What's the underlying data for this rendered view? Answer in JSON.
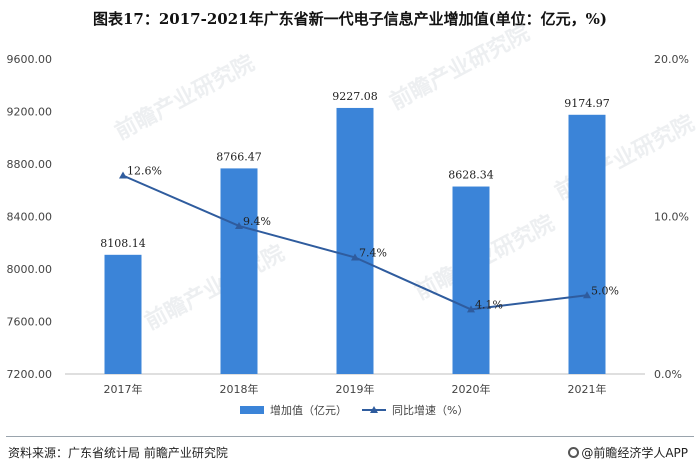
{
  "title": "图表17：2017-2021年广东省新一代电子信息产业增加值(单位：亿元，%)",
  "footer": {
    "source": "资料来源：广东省统计局 前瞻产业研究院",
    "brand": "@前瞻经济学人APP"
  },
  "watermark": "前瞻产业研究院",
  "colors": {
    "bar": "#3b84d8",
    "line": "#2f5c9e",
    "axis": "#bfbfbf"
  },
  "chart_data": {
    "type": "bar",
    "categories": [
      "2017年",
      "2018年",
      "2019年",
      "2020年",
      "2021年"
    ],
    "series": [
      {
        "name": "增加值（亿元）",
        "type": "bar",
        "axis": "left",
        "values": [
          8108.14,
          8766.47,
          9227.08,
          8628.34,
          9174.97
        ],
        "labels": [
          "8108.14",
          "8766.47",
          "9227.08",
          "8628.34",
          "9174.97"
        ]
      },
      {
        "name": "同比增速（%）",
        "type": "line",
        "axis": "right",
        "values": [
          12.6,
          9.4,
          7.4,
          4.1,
          5.0
        ],
        "labels": [
          "12.6%",
          "9.4%",
          "7.4%",
          "4.1%",
          "5.0%"
        ]
      }
    ],
    "y_left": {
      "min": 7200,
      "max": 9600,
      "ticks": [
        "7200.00",
        "7600.00",
        "8000.00",
        "8400.00",
        "8800.00",
        "9200.00",
        "9600.00"
      ],
      "tick_values": [
        7200,
        7600,
        8000,
        8400,
        8800,
        9200,
        9600
      ]
    },
    "y_right": {
      "min": 0,
      "max": 20,
      "ticks": [
        "0.0%",
        "10.0%",
        "20.0%"
      ],
      "tick_values": [
        0,
        10,
        20
      ]
    },
    "grid": false,
    "legend": "bottom"
  }
}
